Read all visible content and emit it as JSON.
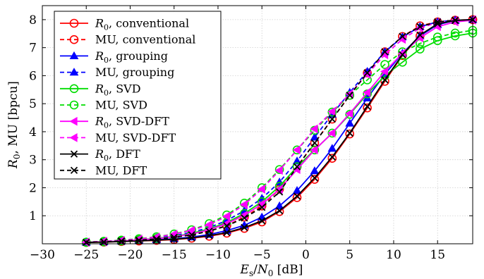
{
  "chart_data": {
    "type": "line",
    "xlabel": "E_s/N_0 [dB]",
    "ylabel": "R_0, MU [bpcu]",
    "xlim": [
      -30,
      19
    ],
    "ylim": [
      0,
      8.5
    ],
    "x_ticks": [
      -30,
      -25,
      -20,
      -15,
      -10,
      -5,
      0,
      5,
      10,
      15
    ],
    "y_ticks": [
      1,
      2,
      3,
      4,
      5,
      6,
      7,
      8
    ],
    "grid": true,
    "legend_position": "top-left",
    "x": [
      -25,
      -23,
      -21,
      -19,
      -17,
      -15,
      -13,
      -11,
      -9,
      -7,
      -5,
      -3,
      -1,
      1,
      3,
      5,
      7,
      9,
      11,
      13,
      15,
      17,
      19
    ],
    "series": [
      {
        "name": "R_0, conventional",
        "color": "#ff0000",
        "dash": "solid",
        "marker": "circle",
        "values": [
          0.05,
          0.06,
          0.08,
          0.1,
          0.12,
          0.15,
          0.2,
          0.27,
          0.38,
          0.55,
          0.78,
          1.15,
          1.65,
          2.3,
          3.05,
          3.92,
          4.85,
          5.8,
          6.72,
          7.42,
          7.85,
          7.98,
          8.0
        ]
      },
      {
        "name": "MU, conventional",
        "color": "#ff0000",
        "dash": "dashed",
        "marker": "circle",
        "values": [
          0.05,
          0.07,
          0.1,
          0.13,
          0.17,
          0.23,
          0.32,
          0.45,
          0.65,
          0.95,
          1.35,
          1.95,
          2.75,
          3.6,
          4.45,
          5.3,
          6.1,
          6.85,
          7.4,
          7.78,
          7.92,
          7.98,
          8.0
        ]
      },
      {
        "name": "R_0, grouping",
        "color": "#0000ff",
        "dash": "solid",
        "marker": "triangle",
        "values": [
          0.05,
          0.07,
          0.09,
          0.11,
          0.14,
          0.18,
          0.24,
          0.33,
          0.47,
          0.66,
          0.95,
          1.35,
          1.9,
          2.6,
          3.4,
          4.3,
          5.2,
          6.05,
          6.8,
          7.42,
          7.82,
          7.97,
          8.0
        ]
      },
      {
        "name": "MU, grouping",
        "color": "#0000ff",
        "dash": "dashed",
        "marker": "triangle",
        "values": [
          0.06,
          0.08,
          0.11,
          0.15,
          0.21,
          0.29,
          0.41,
          0.58,
          0.83,
          1.18,
          1.62,
          2.2,
          2.95,
          3.8,
          4.62,
          5.4,
          6.15,
          6.85,
          7.38,
          7.75,
          7.92,
          7.98,
          8.0
        ]
      },
      {
        "name": "R_0, SVD",
        "color": "#00dd00",
        "dash": "solid",
        "marker": "circle",
        "values": [
          0.05,
          0.07,
          0.1,
          0.14,
          0.19,
          0.26,
          0.37,
          0.53,
          0.76,
          1.08,
          1.5,
          2.05,
          2.75,
          3.35,
          3.95,
          4.62,
          5.35,
          6.0,
          6.48,
          6.95,
          7.25,
          7.42,
          7.52
        ]
      },
      {
        "name": "MU, SVD",
        "color": "#00dd00",
        "dash": "dashed",
        "marker": "circle",
        "values": [
          0.06,
          0.09,
          0.13,
          0.18,
          0.25,
          0.35,
          0.5,
          0.72,
          1.03,
          1.45,
          2.0,
          2.65,
          3.35,
          4.05,
          4.7,
          5.3,
          5.85,
          6.4,
          6.85,
          7.15,
          7.38,
          7.52,
          7.62
        ]
      },
      {
        "name": "R_0, SVD-DFT",
        "color": "#ff00ff",
        "dash": "solid",
        "marker": "triangle-left",
        "values": [
          0.05,
          0.07,
          0.1,
          0.13,
          0.18,
          0.25,
          0.35,
          0.5,
          0.72,
          1.02,
          1.42,
          1.95,
          2.65,
          3.35,
          3.95,
          4.65,
          5.4,
          6.15,
          6.8,
          7.35,
          7.75,
          7.92,
          7.98
        ]
      },
      {
        "name": "MU, SVD-DFT",
        "color": "#ff00ff",
        "dash": "dashed",
        "marker": "triangle-left",
        "values": [
          0.06,
          0.09,
          0.12,
          0.17,
          0.24,
          0.34,
          0.48,
          0.68,
          0.98,
          1.4,
          1.95,
          2.62,
          3.35,
          4.1,
          4.72,
          5.35,
          6.05,
          6.75,
          7.3,
          7.7,
          7.9,
          7.97,
          8.0
        ]
      },
      {
        "name": "R_0, DFT",
        "color": "#000000",
        "dash": "solid",
        "marker": "x",
        "values": [
          0.05,
          0.06,
          0.08,
          0.1,
          0.13,
          0.16,
          0.21,
          0.29,
          0.4,
          0.58,
          0.82,
          1.18,
          1.7,
          2.35,
          3.1,
          3.95,
          4.9,
          5.85,
          6.75,
          7.45,
          7.85,
          7.97,
          8.0
        ]
      },
      {
        "name": "MU, DFT",
        "color": "#000000",
        "dash": "dashed",
        "marker": "x",
        "values": [
          0.05,
          0.07,
          0.1,
          0.13,
          0.17,
          0.23,
          0.32,
          0.45,
          0.64,
          0.92,
          1.3,
          1.85,
          2.75,
          3.6,
          4.45,
          5.3,
          6.1,
          6.85,
          7.4,
          7.75,
          7.92,
          7.98,
          8.0
        ]
      }
    ]
  }
}
